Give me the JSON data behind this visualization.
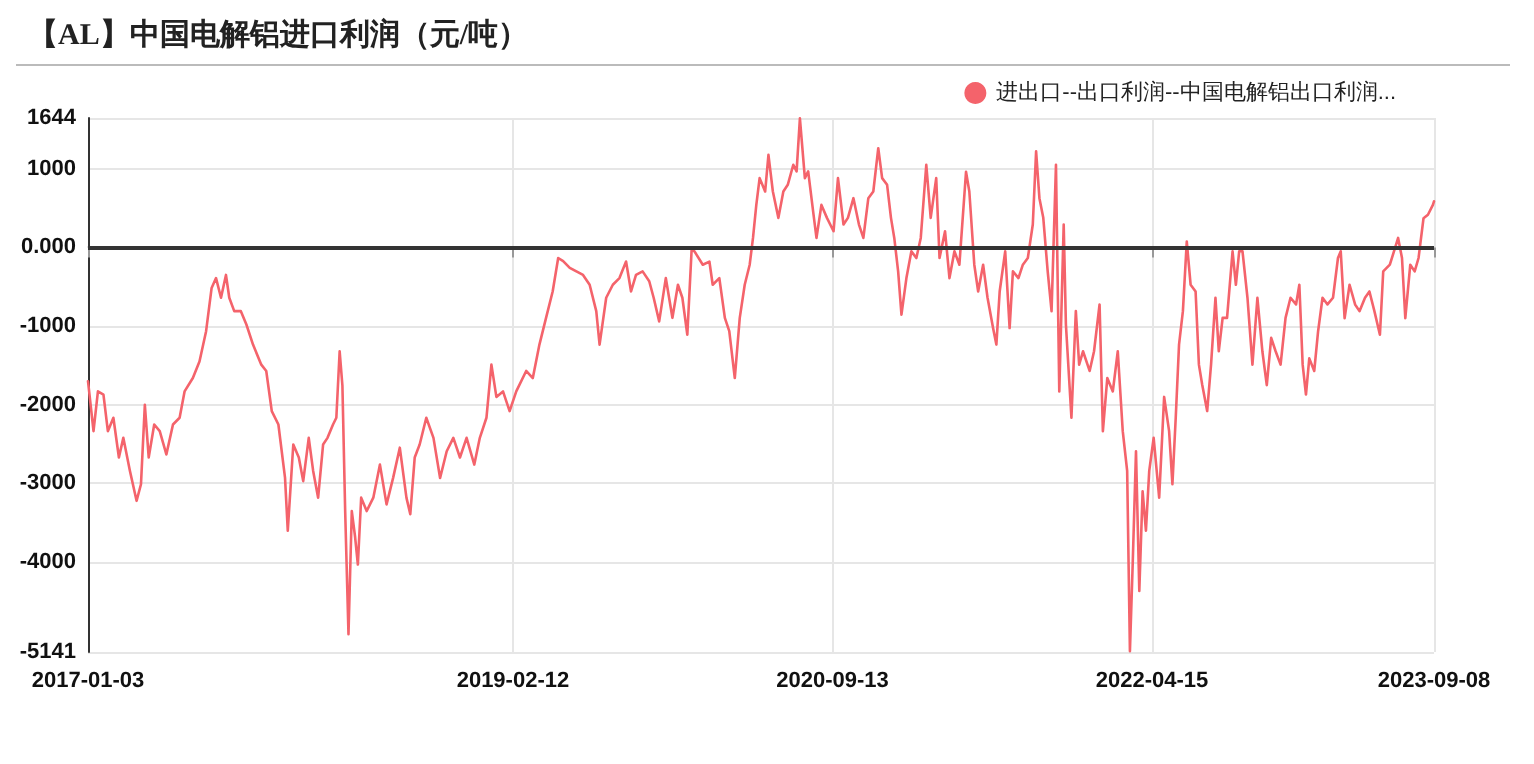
{
  "chart_data": {
    "type": "line",
    "title": "【AL】中国电解铝进口利润（元/吨）",
    "xlim": [
      "2017-01-03",
      "2023-09-08"
    ],
    "xticks": [
      "2017-01-03",
      "2019-02-12",
      "2020-09-13",
      "2022-04-15",
      "2023-09-08"
    ],
    "ylim": [
      -5141,
      1644
    ],
    "yticks": [
      1644,
      1000,
      {
        "value": 0,
        "label": "0.000"
      },
      -1000,
      -2000,
      -3000,
      -4000,
      -5141
    ],
    "grid": true,
    "legend": "top right",
    "marker": "none",
    "line_style": "solid",
    "ref_lines": [
      {
        "axis": "y",
        "value": 0,
        "color": "#333333"
      }
    ],
    "series": [
      {
        "name": "进出口--出口利润--中国电解铝出口利润...",
        "color": "#f4636b",
        "x": [
          "2017-01-03",
          "2017-01-13",
          "2017-01-21",
          "2017-01-31",
          "2017-02-08",
          "2017-02-18",
          "2017-02-28",
          "2017-03-08",
          "2017-03-20",
          "2017-04-01",
          "2017-04-09",
          "2017-04-16",
          "2017-04-23",
          "2017-05-03",
          "2017-05-13",
          "2017-05-25",
          "2017-06-06",
          "2017-06-18",
          "2017-06-27",
          "2017-07-12",
          "2017-07-24",
          "2017-08-05",
          "2017-08-15",
          "2017-08-23",
          "2017-09-01",
          "2017-09-10",
          "2017-09-16",
          "2017-09-25",
          "2017-10-07",
          "2017-10-17",
          "2017-10-29",
          "2017-11-13",
          "2017-11-22",
          "2017-12-02",
          "2017-12-14",
          "2017-12-26",
          "2017-12-31",
          "2018-01-10",
          "2018-01-20",
          "2018-01-28",
          "2018-02-07",
          "2018-02-15",
          "2018-02-24",
          "2018-03-05",
          "2018-03-13",
          "2018-03-23",
          "2018-03-29",
          "2018-04-04",
          "2018-04-09",
          "2018-04-14",
          "2018-04-20",
          "2018-04-26",
          "2018-05-02",
          "2018-05-07",
          "2018-05-13",
          "2018-05-23",
          "2018-06-04",
          "2018-06-16",
          "2018-06-28",
          "2018-07-10",
          "2018-07-22",
          "2018-08-03",
          "2018-08-10",
          "2018-08-18",
          "2018-08-27",
          "2018-09-08",
          "2018-09-21",
          "2018-10-03",
          "2018-10-15",
          "2018-10-27",
          "2018-11-08",
          "2018-11-20",
          "2018-12-04",
          "2018-12-14",
          "2018-12-26",
          "2019-01-04",
          "2019-01-13",
          "2019-01-25",
          "2019-02-06",
          "2019-02-18",
          "2019-03-08",
          "2019-03-20",
          "2019-04-01",
          "2019-04-13",
          "2019-04-25",
          "2019-05-05",
          "2019-05-14",
          "2019-05-26",
          "2019-06-07",
          "2019-06-19",
          "2019-07-01",
          "2019-07-13",
          "2019-07-19",
          "2019-07-31",
          "2019-08-12",
          "2019-08-24",
          "2019-09-05",
          "2019-09-14",
          "2019-09-23",
          "2019-10-05",
          "2019-10-17",
          "2019-10-25",
          "2019-11-04",
          "2019-11-16",
          "2019-11-28",
          "2019-12-08",
          "2019-12-16",
          "2019-12-25",
          "2020-01-02",
          "2020-01-10",
          "2020-01-22",
          "2020-02-03",
          "2020-02-09",
          "2020-02-21",
          "2020-03-02",
          "2020-03-10",
          "2020-03-20",
          "2020-03-29",
          "2020-04-07",
          "2020-04-16",
          "2020-04-22",
          "2020-04-28",
          "2020-05-04",
          "2020-05-14",
          "2020-05-20",
          "2020-05-28",
          "2020-06-07",
          "2020-06-16",
          "2020-06-24",
          "2020-07-04",
          "2020-07-10",
          "2020-07-16",
          "2020-07-25",
          "2020-07-31",
          "2020-08-09",
          "2020-08-15",
          "2020-08-24",
          "2020-09-03",
          "2020-09-15",
          "2020-09-23",
          "2020-10-03",
          "2020-10-11",
          "2020-10-21",
          "2020-10-31",
          "2020-11-08",
          "2020-11-17",
          "2020-11-26",
          "2020-12-05",
          "2020-12-12",
          "2020-12-21",
          "2020-12-28",
          "2021-01-03",
          "2021-01-10",
          "2021-01-16",
          "2021-01-25",
          "2021-02-03",
          "2021-02-12",
          "2021-02-20",
          "2021-03-02",
          "2021-03-10",
          "2021-03-20",
          "2021-03-26",
          "2021-04-05",
          "2021-04-13",
          "2021-04-22",
          "2021-05-01",
          "2021-05-13",
          "2021-05-19",
          "2021-05-28",
          "2021-06-04",
          "2021-06-13",
          "2021-06-21",
          "2021-07-01",
          "2021-07-07",
          "2021-07-13",
          "2021-07-23",
          "2021-07-31",
          "2021-08-06",
          "2021-08-16",
          "2021-08-24",
          "2021-09-02",
          "2021-09-11",
          "2021-09-17",
          "2021-09-23",
          "2021-09-30",
          "2021-10-08",
          "2021-10-15",
          "2021-10-23",
          "2021-10-29",
          "2021-11-06",
          "2021-11-10",
          "2021-11-20",
          "2021-11-28",
          "2021-12-04",
          "2021-12-11",
          "2021-12-23",
          "2021-12-31",
          "2022-01-10",
          "2022-01-16",
          "2022-01-24",
          "2022-02-03",
          "2022-02-12",
          "2022-02-21",
          "2022-03-01",
          "2022-03-06",
          "2022-03-11",
          "2022-03-17",
          "2022-03-23",
          "2022-03-29",
          "2022-04-04",
          "2022-04-10",
          "2022-04-18",
          "2022-04-28",
          "2022-05-07",
          "2022-05-16",
          "2022-05-22",
          "2022-05-28",
          "2022-06-03",
          "2022-06-10",
          "2022-06-17",
          "2022-06-24",
          "2022-07-03",
          "2022-07-09",
          "2022-07-15",
          "2022-07-24",
          "2022-07-31",
          "2022-08-08",
          "2022-08-14",
          "2022-08-21",
          "2022-08-29",
          "2022-09-08",
          "2022-09-14",
          "2022-09-20",
          "2022-09-26",
          "2022-10-05",
          "2022-10-14",
          "2022-10-23",
          "2022-11-01",
          "2022-11-09",
          "2022-11-17",
          "2022-11-25",
          "2022-12-04",
          "2022-12-13",
          "2022-12-22",
          "2023-01-01",
          "2023-01-07",
          "2023-01-13",
          "2023-01-19",
          "2023-01-25",
          "2023-02-03",
          "2023-02-10",
          "2023-02-18",
          "2023-02-27",
          "2023-03-09",
          "2023-03-18",
          "2023-03-23",
          "2023-03-30",
          "2023-04-08",
          "2023-04-18",
          "2023-04-26",
          "2023-05-06",
          "2023-05-14",
          "2023-05-23",
          "2023-06-02",
          "2023-06-08",
          "2023-06-20",
          "2023-07-05",
          "2023-07-12",
          "2023-07-18",
          "2023-07-27",
          "2023-08-04",
          "2023-08-11",
          "2023-08-20",
          "2023-08-28",
          "2023-09-06",
          "2023-09-08"
        ],
        "values": [
          -1700,
          -2335,
          -1830,
          -1870,
          -2335,
          -2165,
          -2670,
          -2420,
          -2840,
          -3220,
          -3010,
          -2000,
          -2670,
          -2250,
          -2335,
          -2630,
          -2250,
          -2165,
          -1830,
          -1660,
          -1450,
          -1065,
          -515,
          -390,
          -640,
          -350,
          -640,
          -810,
          -810,
          -980,
          -1235,
          -1490,
          -1570,
          -2080,
          -2250,
          -2925,
          -3600,
          -2505,
          -2670,
          -2970,
          -2420,
          -2840,
          -3180,
          -2505,
          -2420,
          -2250,
          -2165,
          -1320,
          -1755,
          -3350,
          -4915,
          -3350,
          -3680,
          -4030,
          -3180,
          -3350,
          -3180,
          -2760,
          -3265,
          -2925,
          -2545,
          -3180,
          -3390,
          -2670,
          -2505,
          -2165,
          -2420,
          -2930,
          -2590,
          -2420,
          -2670,
          -2420,
          -2760,
          -2420,
          -2165,
          -1490,
          -1900,
          -1830,
          -2080,
          -1830,
          -1570,
          -1660,
          -1235,
          -895,
          -560,
          -135,
          -175,
          -260,
          -305,
          -350,
          -475,
          -810,
          -1235,
          -640,
          -475,
          -390,
          -180,
          -560,
          -350,
          -305,
          -430,
          -640,
          -940,
          -390,
          -895,
          -475,
          -640,
          -1110,
          0,
          -85,
          -220,
          -180,
          -475,
          -390,
          -895,
          -1065,
          -1660,
          -895,
          -475,
          -220,
          120,
          540,
          880,
          710,
          1175,
          710,
          375,
          710,
          795,
          1050,
          965,
          1640,
          880,
          965,
          455,
          120,
          540,
          375,
          205,
          880,
          290,
          375,
          625,
          290,
          120,
          625,
          710,
          1260,
          880,
          795,
          375,
          120,
          -305,
          -855,
          -390,
          -50,
          -135,
          120,
          1050,
          375,
          880,
          -135,
          205,
          -390,
          -50,
          -220,
          960,
          710,
          -220,
          -560,
          -220,
          -640,
          -1025,
          -1235,
          -560,
          -50,
          -1025,
          -305,
          -390,
          -220,
          -135,
          290,
          1220,
          625,
          375,
          -305,
          -810,
          1050,
          -1830,
          290,
          -980,
          -2165,
          -810,
          -1490,
          -1320,
          -1570,
          -1320,
          -725,
          -2335,
          -1660,
          -1830,
          -1320,
          -2335,
          -2840,
          -5130,
          -4030,
          -2590,
          -4365,
          -3100,
          -3600,
          -2840,
          -2420,
          -3180,
          -1900,
          -2335,
          -3010,
          -2165,
          -1235,
          -810,
          75,
          -475,
          -560,
          -1490,
          -1745,
          -2080,
          -1490,
          -640,
          -1320,
          -895,
          -895,
          -50,
          -475,
          -50,
          -50,
          -640,
          -1490,
          -640,
          -1320,
          -1750,
          -1150,
          -1320,
          -1490,
          -895,
          -640,
          -725,
          -475,
          -1490,
          -1870,
          -1410,
          -1570,
          -1065,
          -640,
          -725,
          -640,
          -135,
          -50,
          -900,
          -475,
          -725,
          -810,
          -640,
          -560,
          -810,
          -1110,
          -305,
          -220,
          120,
          -135,
          -900,
          -220,
          -305,
          -135,
          370,
          415,
          540,
          585
        ]
      }
    ]
  }
}
